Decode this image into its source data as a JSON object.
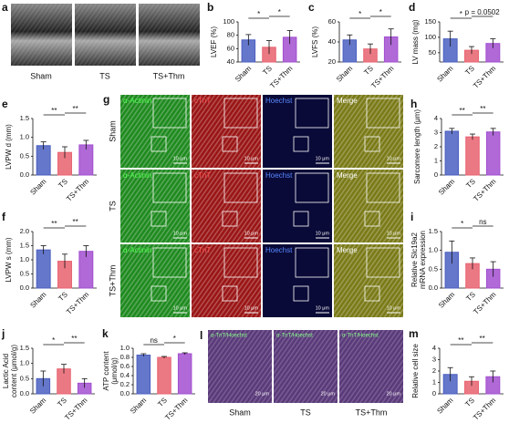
{
  "panels": {
    "a": {
      "label": "a",
      "images": [
        "Sham",
        "TS",
        "TS+Thm"
      ]
    },
    "g": {
      "label": "g",
      "columns": [
        "α-Actinin",
        "cTnT",
        "Hoechst",
        "Merge"
      ],
      "rows": [
        "Sham",
        "TS",
        "TS+Thm"
      ],
      "scale": "10 μm"
    },
    "l": {
      "label": "l",
      "stain": "α-TnT/Hoechst",
      "images": [
        "Sham",
        "TS",
        "TS+Thm"
      ],
      "scale": "20 μm"
    }
  },
  "chart_data": [
    {
      "type": "bar",
      "panel": "b",
      "y_label": "LVEF (%)",
      "categories": [
        "Sham",
        "TS",
        "TS+Thm"
      ],
      "values": [
        73,
        62,
        77
      ],
      "errors": [
        8,
        10,
        10
      ],
      "colors": [
        "#4a5fc1",
        "#e8626f",
        "#a24fd0"
      ],
      "ylim": [
        40,
        100
      ],
      "yticks": [
        40,
        60,
        80,
        100
      ],
      "annotations": [
        "*",
        "*"
      ]
    },
    {
      "type": "bar",
      "panel": "c",
      "y_label": "LVFS (%)",
      "categories": [
        "Sham",
        "TS",
        "TS+Thm"
      ],
      "values": [
        42,
        33,
        45
      ],
      "errors": [
        5,
        5,
        8
      ],
      "colors": [
        "#4a5fc1",
        "#e8626f",
        "#a24fd0"
      ],
      "ylim": [
        20,
        60
      ],
      "yticks": [
        20,
        40,
        60
      ],
      "annotations": [
        "*",
        "*"
      ]
    },
    {
      "type": "bar",
      "panel": "d",
      "y_label": "LV mass (mg)",
      "categories": [
        "Sham",
        "TS",
        "TS+Thm"
      ],
      "values": [
        95,
        58,
        80
      ],
      "errors": [
        25,
        12,
        15
      ],
      "colors": [
        "#4a5fc1",
        "#e8626f",
        "#a24fd0"
      ],
      "ylim": [
        20,
        150
      ],
      "yticks": [
        50,
        100,
        150
      ],
      "annotations": [
        "*",
        "p = 0.0502"
      ]
    },
    {
      "type": "bar",
      "panel": "e",
      "y_label": "LVPW d (mm)",
      "categories": [
        "Sham",
        "TS",
        "TS+Thm"
      ],
      "values": [
        0.78,
        0.6,
        0.8
      ],
      "errors": [
        0.1,
        0.15,
        0.12
      ],
      "colors": [
        "#4a5fc1",
        "#e8626f",
        "#a24fd0"
      ],
      "ylim": [
        0,
        1.5
      ],
      "yticks": [
        {
          "value": 0,
          "label": "0.0"
        },
        0.5,
        {
          "value": 1,
          "label": "1.0"
        },
        1.5
      ],
      "annotations": [
        "**",
        "**"
      ]
    },
    {
      "type": "bar",
      "panel": "f",
      "y_label": "LVPW s (mm)",
      "categories": [
        "Sham",
        "TS",
        "TS+Thm"
      ],
      "values": [
        1.35,
        0.95,
        1.3
      ],
      "errors": [
        0.15,
        0.25,
        0.2
      ],
      "colors": [
        "#4a5fc1",
        "#e8626f",
        "#a24fd0"
      ],
      "ylim": [
        0,
        2
      ],
      "yticks": [
        {
          "value": 0,
          "label": "0.0"
        },
        0.5,
        {
          "value": 1,
          "label": "1.0"
        },
        1.5,
        {
          "value": 2,
          "label": "2.0"
        }
      ],
      "annotations": [
        "**",
        "**"
      ]
    },
    {
      "type": "bar",
      "panel": "h",
      "y_label": "Sarcomere length (μm)",
      "categories": [
        "Sham",
        "TS",
        "TS+Thm"
      ],
      "values": [
        3.1,
        2.7,
        3.05
      ],
      "errors": [
        0.2,
        0.2,
        0.25
      ],
      "colors": [
        "#4a5fc1",
        "#e8626f",
        "#a24fd0"
      ],
      "ylim": [
        0,
        4
      ],
      "yticks": [
        0,
        1,
        2,
        3,
        4
      ],
      "annotations": [
        "**",
        "**"
      ]
    },
    {
      "type": "bar",
      "panel": "i",
      "y_label": [
        "Relative Slc19a2",
        "mRNA expression"
      ],
      "categories": [
        "Sham",
        "TS",
        "TS+Thm"
      ],
      "values": [
        0.95,
        0.65,
        0.5
      ],
      "errors": [
        0.3,
        0.15,
        0.2
      ],
      "colors": [
        "#4a5fc1",
        "#e8626f",
        "#a24fd0"
      ],
      "ylim": [
        0,
        1.5
      ],
      "yticks": [
        {
          "value": 0,
          "label": "0.0"
        },
        0.5,
        {
          "value": 1,
          "label": "1.0"
        },
        1.5
      ],
      "annotations": [
        "*",
        "ns"
      ]
    },
    {
      "type": "bar",
      "panel": "j",
      "y_label": [
        "Lactic Acid",
        "content (μmol/g)"
      ],
      "categories": [
        "Sham",
        "TS",
        "TS+Thm"
      ],
      "values": [
        0.5,
        0.82,
        0.35
      ],
      "errors": [
        0.25,
        0.15,
        0.15
      ],
      "colors": [
        "#4a5fc1",
        "#e8626f",
        "#a24fd0"
      ],
      "ylim": [
        0,
        1.5
      ],
      "yticks": [
        {
          "value": 0,
          "label": "0.0"
        },
        0.5,
        {
          "value": 1,
          "label": "1.0"
        },
        1.5
      ],
      "annotations": [
        "*",
        "**"
      ]
    },
    {
      "type": "bar",
      "panel": "k",
      "y_label": [
        "ATP content",
        "(μmol/g)"
      ],
      "categories": [
        "Sham",
        "TS",
        "TS+Thm"
      ],
      "values": [
        0.85,
        0.8,
        0.88
      ],
      "errors": [
        0.03,
        0.02,
        0.02
      ],
      "colors": [
        "#4a5fc1",
        "#e8626f",
        "#a24fd0"
      ],
      "ylim": [
        0,
        1
      ],
      "yticks": [
        {
          "value": 0,
          "label": "0.0"
        },
        0.2,
        0.4,
        0.6,
        0.8,
        {
          "value": 1,
          "label": "1.0"
        }
      ],
      "annotations": [
        "ns",
        "*"
      ]
    },
    {
      "type": "bar",
      "panel": "m",
      "y_label": "Relative cell size",
      "categories": [
        "Sham",
        "TS",
        "TS+Thm"
      ],
      "values": [
        1.7,
        1.1,
        1.5
      ],
      "errors": [
        0.6,
        0.4,
        0.5
      ],
      "colors": [
        "#4a5fc1",
        "#e8626f",
        "#a24fd0"
      ],
      "ylim": [
        0,
        4
      ],
      "yticks": [
        0,
        1,
        2,
        3,
        4
      ],
      "annotations": [
        "**",
        "**"
      ]
    }
  ]
}
